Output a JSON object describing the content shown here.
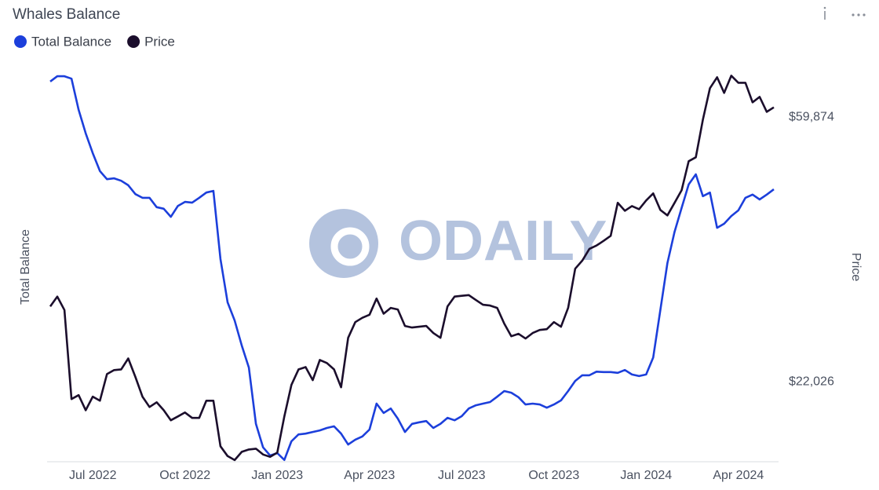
{
  "chart_data": {
    "type": "line",
    "title": "Whales Balance",
    "watermark": "ODAILY",
    "legend": "top-left",
    "y_label": "Total Balance",
    "y2_label": "Price",
    "categories": [
      null,
      null,
      null,
      null,
      null,
      null,
      "Jul 2022",
      null,
      null,
      null,
      null,
      null,
      null,
      null,
      null,
      null,
      null,
      null,
      null,
      "Oct 2022",
      null,
      null,
      null,
      null,
      null,
      null,
      null,
      null,
      null,
      null,
      null,
      null,
      "Jan 2023",
      null,
      null,
      null,
      null,
      null,
      null,
      null,
      null,
      null,
      null,
      null,
      null,
      "Apr 2023",
      null,
      null,
      null,
      null,
      null,
      null,
      null,
      null,
      null,
      null,
      null,
      null,
      "Jul 2023",
      null,
      null,
      null,
      null,
      null,
      null,
      null,
      null,
      null,
      null,
      null,
      null,
      "Oct 2023",
      null,
      null,
      null,
      null,
      null,
      null,
      null,
      null,
      null,
      null,
      null,
      null,
      "Jan 2024",
      null,
      null,
      null,
      null,
      null,
      null,
      null,
      null,
      null,
      null,
      null,
      null,
      "Apr 2024",
      null,
      null,
      null,
      null,
      null
    ],
    "ylim": [
      0,
      100
    ],
    "y2lim": [
      16000,
      74000
    ],
    "y2scale": "log",
    "y2ticks": [
      {
        "value": 22026,
        "label": "$22,026"
      },
      {
        "value": 59874,
        "label": "$59,874"
      }
    ],
    "series": [
      {
        "name": "Total Balance",
        "color": "#1c3fdb",
        "axis": "y",
        "values": [
          95.0,
          96.3,
          96.3,
          95.7,
          88.0,
          82.2,
          77.3,
          72.9,
          70.9,
          71.1,
          70.5,
          69.4,
          67.2,
          66.3,
          66.3,
          64.0,
          63.6,
          61.6,
          64.3,
          65.3,
          65.1,
          66.3,
          67.6,
          68.0,
          51.2,
          40.5,
          36.0,
          29.8,
          24.4,
          10.5,
          4.7,
          2.7,
          3.3,
          1.6,
          6.2,
          7.9,
          8.1,
          8.5,
          8.9,
          9.5,
          9.9,
          8.1,
          5.4,
          6.6,
          7.4,
          9.1,
          15.5,
          13.2,
          14.3,
          11.8,
          8.5,
          10.5,
          10.9,
          11.2,
          9.5,
          10.5,
          12.0,
          11.4,
          12.4,
          14.3,
          15.1,
          15.5,
          15.9,
          17.2,
          18.6,
          18.2,
          17.1,
          15.3,
          15.5,
          15.3,
          14.5,
          15.3,
          16.3,
          18.6,
          21.1,
          22.5,
          22.5,
          23.4,
          23.3,
          23.3,
          23.1,
          23.8,
          22.7,
          22.3,
          22.7,
          26.9,
          38.6,
          50.2,
          57.9,
          63.8,
          69.6,
          72.1,
          66.7,
          67.6,
          58.9,
          59.9,
          61.8,
          63.2,
          66.3,
          67.1,
          65.9,
          67.1,
          68.4
        ]
      },
      {
        "name": "Price",
        "color": "#1b0e2c",
        "axis": "y2",
        "values": [
          29300,
          30400,
          28900,
          20640,
          20950,
          19790,
          20830,
          20510,
          22680,
          23030,
          23090,
          24060,
          22440,
          20830,
          20030,
          20390,
          19790,
          19050,
          19330,
          19620,
          19220,
          19220,
          20510,
          20510,
          17270,
          16640,
          16390,
          16910,
          17060,
          17110,
          16740,
          16590,
          16860,
          19330,
          21770,
          23090,
          23290,
          22170,
          23930,
          23650,
          23090,
          21580,
          26020,
          27610,
          28060,
          28390,
          30180,
          28500,
          29130,
          28960,
          27210,
          27050,
          27130,
          27210,
          26490,
          26020,
          29300,
          30400,
          30490,
          30580,
          30010,
          29480,
          29390,
          29130,
          27450,
          26170,
          26410,
          25950,
          26490,
          26800,
          26880,
          27610,
          27130,
          29130,
          33780,
          34830,
          36420,
          36870,
          37530,
          38260,
          43330,
          42060,
          42810,
          42310,
          43720,
          44900,
          42180,
          41320,
          43330,
          45440,
          50720,
          51470,
          59340,
          66840,
          69650,
          65660,
          70060,
          68230,
          68230,
          63360,
          64670,
          61130,
          62160
        ]
      }
    ]
  }
}
